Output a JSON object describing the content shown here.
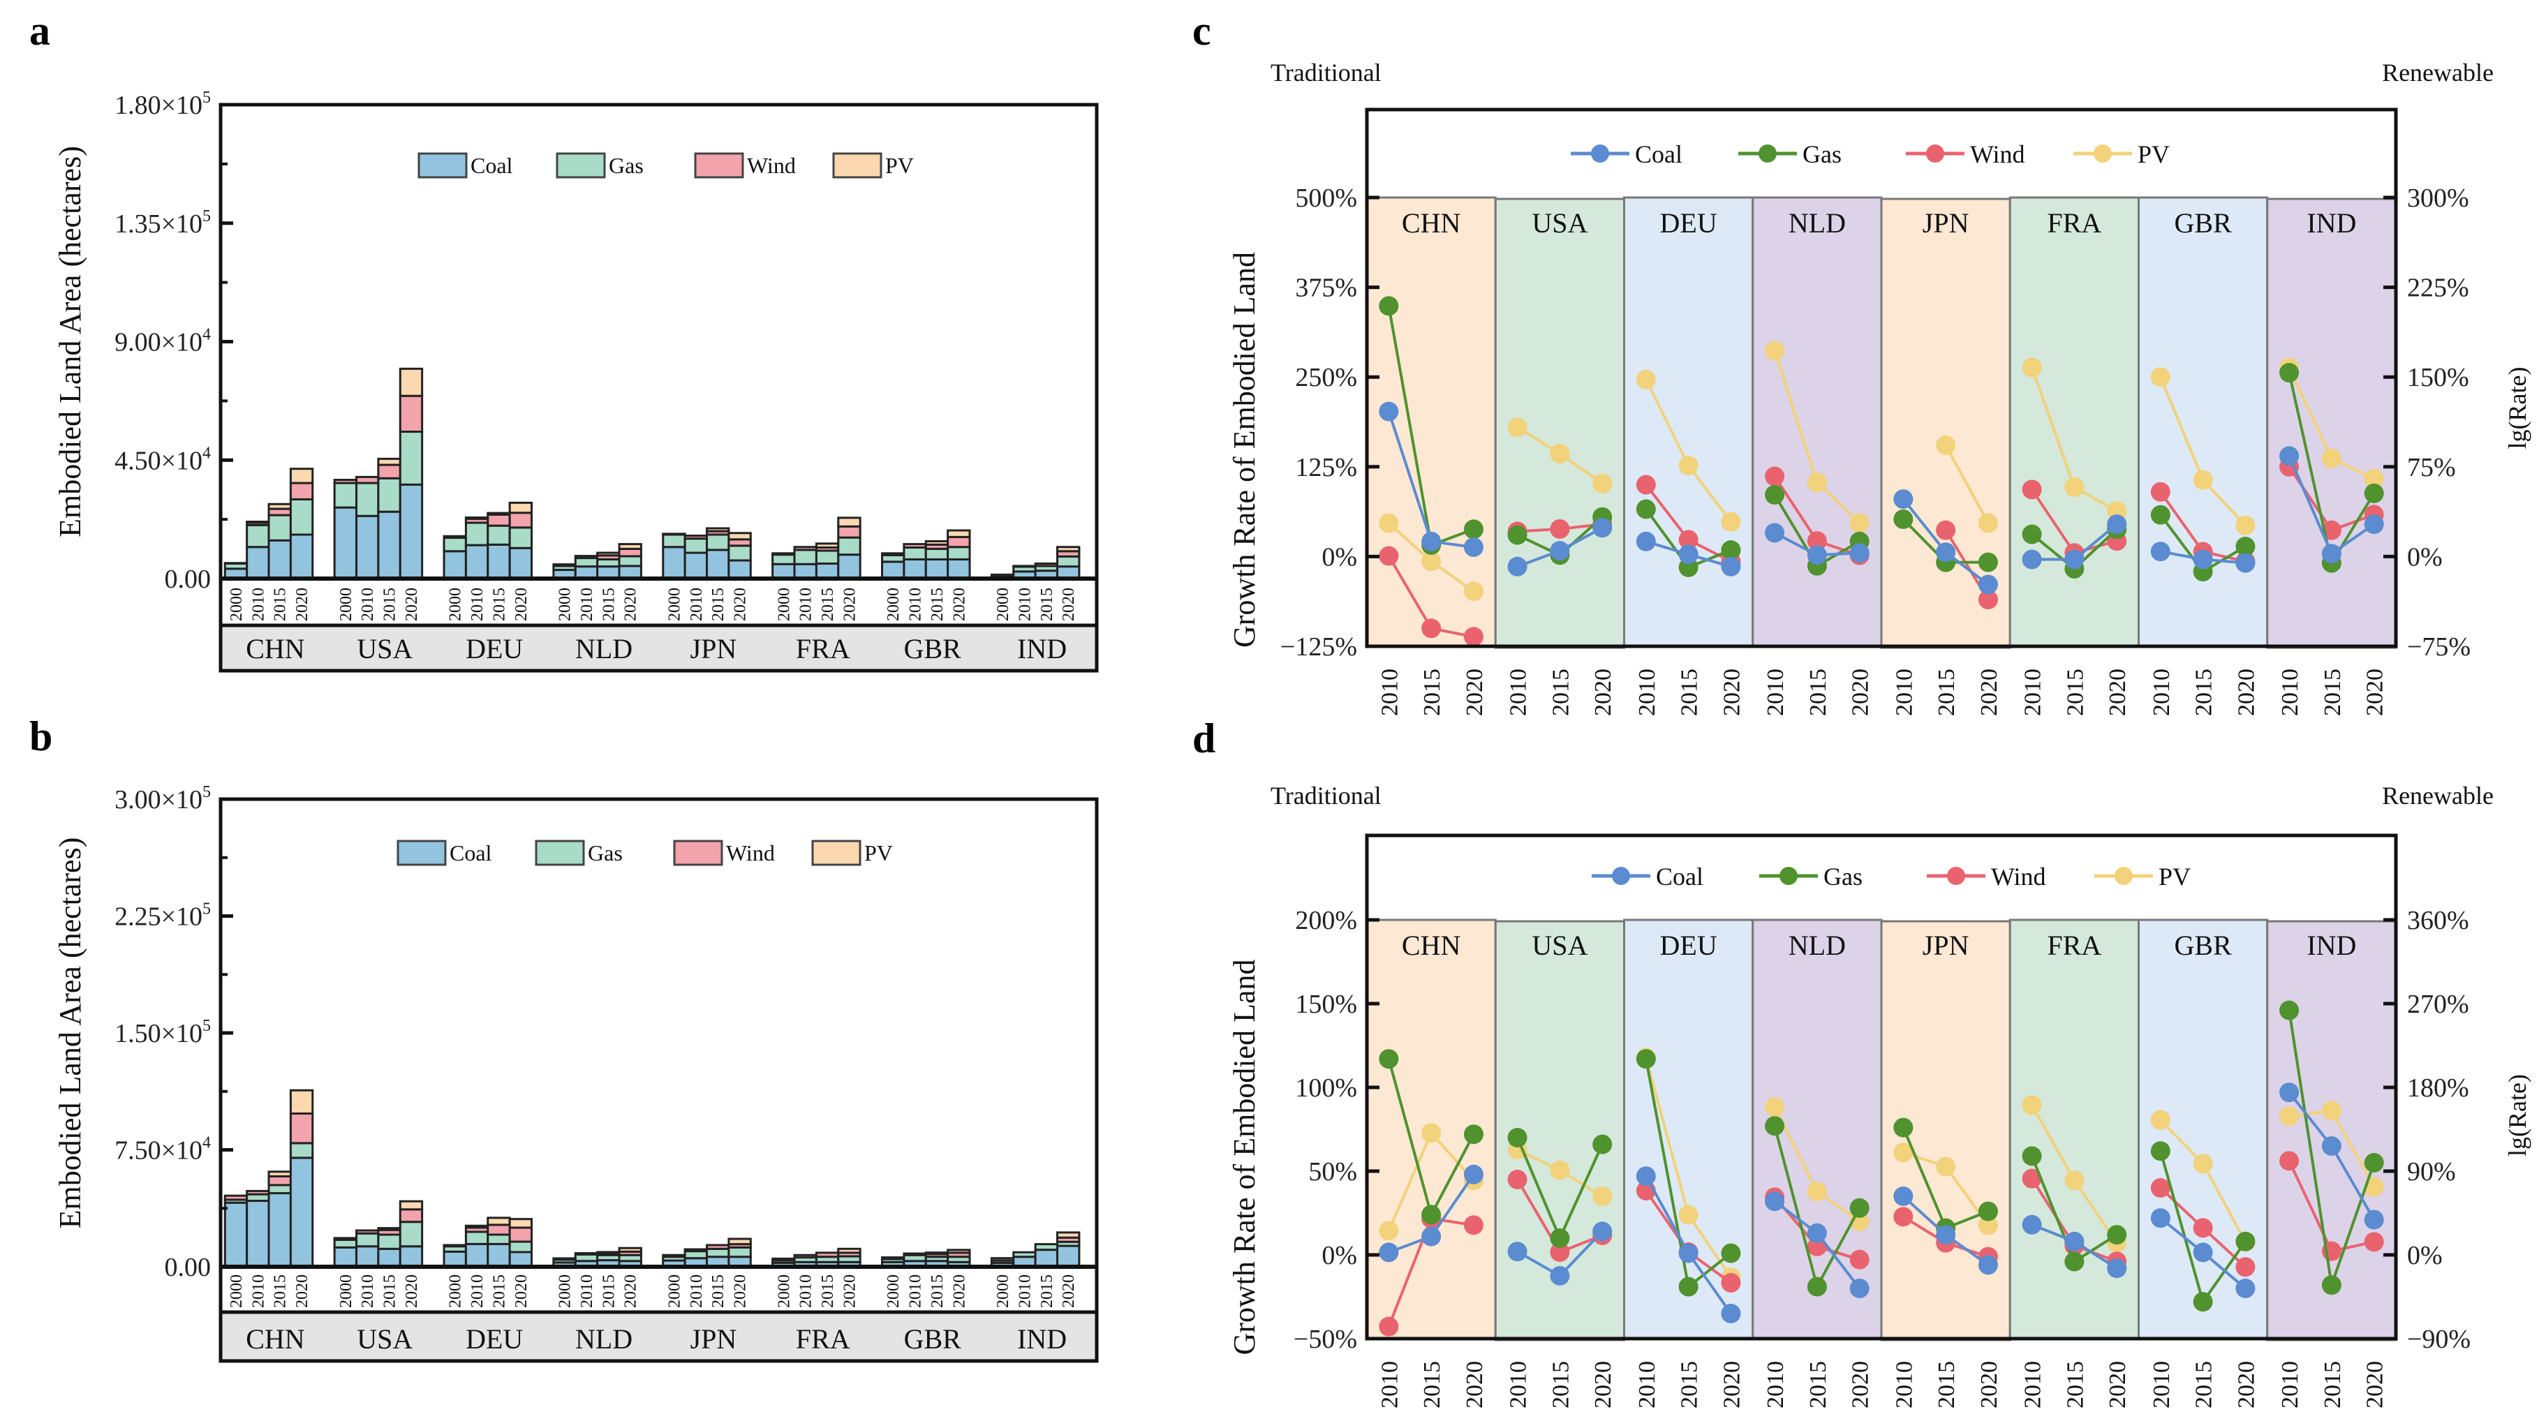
{
  "figure": {
    "colors": {
      "Coal_bar": "#92c4e0",
      "Gas_bar": "#a8dcc8",
      "Wind_bar": "#f2a3ac",
      "PV_bar": "#fbd8b0",
      "Coal_line": "#5b8bd0",
      "Gas_line": "#4f922e",
      "Wind_line": "#e9636f",
      "PV_line": "#f2d27a",
      "country_band": "#e4e4e4",
      "strips": [
        "#fde8d3",
        "#d5e8dc",
        "#dde9f6",
        "#dcd3e8"
      ]
    }
  },
  "chart_data": [
    {
      "panel": "a",
      "type": "bar",
      "stacked": true,
      "ylabel": "Embodied Land Area (hectares)",
      "ylim": [
        0,
        180000
      ],
      "yticks": [
        0,
        45000,
        90000,
        135000,
        180000
      ],
      "ytick_labels": [
        "0.00",
        "4.50×10^4",
        "9.00×10^4",
        "1.35×10^5",
        "1.80×10^5"
      ],
      "legend": [
        "Coal",
        "Gas",
        "Wind",
        "PV"
      ],
      "legend_position": "top-center",
      "countries": [
        "CHN",
        "USA",
        "DEU",
        "NLD",
        "JPN",
        "FRA",
        "GBR",
        "IND"
      ],
      "years": [
        "2000",
        "2010",
        "2015",
        "2020"
      ],
      "series": [
        {
          "name": "Coal",
          "values": [
            [
              3750,
              12000,
              14500,
              16700
            ],
            [
              27000,
              23800,
              25400,
              35700
            ],
            [
              10400,
              12700,
              12900,
              11600
            ],
            [
              3300,
              4600,
              4600,
              4800
            ],
            [
              12000,
              9800,
              10900,
              6900
            ],
            [
              5500,
              5500,
              5700,
              9100
            ],
            [
              6400,
              7300,
              7300,
              7300
            ],
            [
              1200,
              2700,
              3000,
              4600
            ]
          ]
        },
        {
          "name": "Gas",
          "values": [
            [
              1950,
              8300,
              9600,
              13400
            ],
            [
              9300,
              12500,
              12700,
              20100
            ],
            [
              5100,
              8500,
              7200,
              7800
            ],
            [
              1500,
              3200,
              2700,
              3700
            ],
            [
              4700,
              5400,
              5800,
              5600
            ],
            [
              3600,
              5400,
              4900,
              6500
            ],
            [
              2500,
              4500,
              4000,
              4700
            ],
            [
              300,
              1800,
              1800,
              3800
            ]
          ]
        },
        {
          "name": "Wind",
          "values": [
            [
              200,
              900,
              2400,
              6200
            ],
            [
              1200,
              2300,
              5100,
              13600
            ],
            [
              600,
              1500,
              4200,
              5600
            ],
            [
              600,
              800,
              1500,
              2800
            ],
            [
              300,
              1100,
              1300,
              2400
            ],
            [
              500,
              1100,
              1200,
              4200
            ],
            [
              700,
              1300,
              1600,
              3800
            ],
            [
              0,
              300,
              900,
              2000
            ]
          ]
        },
        {
          "name": "PV",
          "values": [
            [
              0,
              400,
              1800,
              5400
            ],
            [
              0,
              0,
              2300,
              10300
            ],
            [
              0,
              500,
              600,
              3800
            ],
            [
              0,
              0,
              1000,
              1800
            ],
            [
              0,
              0,
              1100,
              2400
            ],
            [
              0,
              0,
              1500,
              3300
            ],
            [
              0,
              0,
              1300,
              2500
            ],
            [
              0,
              0,
              0,
              1600
            ]
          ]
        }
      ]
    },
    {
      "panel": "b",
      "type": "bar",
      "stacked": true,
      "ylabel": "Embodied Land Area (hectares)",
      "ylim": [
        0,
        300000
      ],
      "yticks": [
        0,
        75000,
        150000,
        225000,
        300000
      ],
      "ytick_labels": [
        "0.00",
        "7.50×10^4",
        "1.50×10^5",
        "2.25×10^5",
        "3.00×10^5"
      ],
      "legend": [
        "Coal",
        "Gas",
        "Wind",
        "PV"
      ],
      "legend_position": "top-center",
      "countries": [
        "CHN",
        "USA",
        "DEU",
        "NLD",
        "JPN",
        "FRA",
        "GBR",
        "IND"
      ],
      "years": [
        "2000",
        "2010",
        "2015",
        "2020"
      ],
      "series": [
        {
          "name": "Coal",
          "values": [
            [
              41100,
              42300,
              47200,
              69900
            ],
            [
              12400,
              13100,
              11500,
              13100
            ],
            [
              9700,
              14600,
              14600,
              9400
            ],
            [
              2700,
              3700,
              4200,
              3700
            ],
            [
              4000,
              5500,
              6400,
              6400
            ],
            [
              2500,
              3000,
              3000,
              3000
            ],
            [
              3000,
              3700,
              3700,
              3000
            ],
            [
              2500,
              6400,
              10900,
              13400
            ]
          ]
        },
        {
          "name": "Gas",
          "values": [
            [
              1900,
              4200,
              5200,
              9400
            ],
            [
              4900,
              8300,
              9100,
              15700
            ],
            [
              3400,
              7800,
              6000,
              6700
            ],
            [
              1800,
              4200,
              3300,
              3800
            ],
            [
              2400,
              4500,
              5100,
              6000
            ],
            [
              1500,
              3000,
              3400,
              3700
            ],
            [
              1900,
              3800,
              2700,
              3400
            ],
            [
              1500,
              2900,
              3600,
              2600
            ]
          ]
        },
        {
          "name": "Wind",
          "values": [
            [
              2600,
              2100,
              5600,
              19000
            ],
            [
              1100,
              1900,
              3000,
              8000
            ],
            [
              800,
              2700,
              6300,
              9000
            ],
            [
              900,
              800,
              1200,
              2200
            ],
            [
              1100,
              1200,
              2400,
              2100
            ],
            [
              1200,
              1500,
              2600,
              2300
            ],
            [
              1100,
              1000,
              1800,
              2600
            ],
            [
              1500,
              0,
              0,
              2700
            ]
          ]
        },
        {
          "name": "PV",
          "values": [
            [
              0,
              0,
              3000,
              14900
            ],
            [
              0,
              0,
              1200,
              5200
            ],
            [
              0,
              1200,
              4500,
              5500
            ],
            [
              0,
              0,
              700,
              2300
            ],
            [
              0,
              0,
              0,
              3400
            ],
            [
              0,
              0,
              0,
              2500
            ],
            [
              0,
              0,
              900,
              1800
            ],
            [
              0,
              0,
              0,
              3300
            ]
          ]
        }
      ]
    },
    {
      "panel": "c",
      "type": "line",
      "title_left": "Traditional",
      "title_right": "Renewable",
      "ylabel": "Growth Rate of Embodied Land",
      "ylabel_right": "lg(Rate)",
      "ylim": [
        -125,
        500
      ],
      "yticks": [
        -125,
        0,
        125,
        250,
        375,
        500
      ],
      "ytick_labels": [
        "−125%",
        "0%",
        "125%",
        "250%",
        "375%",
        "500%"
      ],
      "ylim_right": [
        -75,
        300
      ],
      "yticks_right": [
        -75,
        0,
        75,
        150,
        225,
        300
      ],
      "ytick_labels_right": [
        "−75%",
        "0%",
        "75%",
        "150%",
        "225%",
        "300%"
      ],
      "legend": [
        "Coal",
        "Gas",
        "Wind",
        "PV"
      ],
      "legend_position": "top-center",
      "countries": [
        "CHN",
        "USA",
        "DEU",
        "NLD",
        "JPN",
        "FRA",
        "GBR",
        "IND"
      ],
      "x": [
        "2010",
        "2015",
        "2020"
      ],
      "series": [
        {
          "name": "Coal",
          "axis": "left",
          "values": [
            [
              202,
              21,
              13
            ],
            [
              -14,
              8,
              40
            ],
            [
              21,
              3,
              -14
            ],
            [
              33,
              2,
              5
            ],
            [
              80,
              6,
              -39
            ],
            [
              -4,
              -4,
              45
            ],
            [
              7,
              -4,
              -9
            ],
            [
              140,
              4,
              45
            ]
          ]
        },
        {
          "name": "Gas",
          "axis": "left",
          "values": [
            [
              349,
              16,
              38
            ],
            [
              30,
              2,
              55
            ],
            [
              66,
              -15,
              9
            ],
            [
              86,
              -13,
              21
            ],
            [
              52,
              -8,
              -8
            ],
            [
              31,
              -17,
              38
            ],
            [
              58,
              -21,
              14
            ],
            [
              256,
              -9,
              88
            ]
          ]
        },
        {
          "name": "Wind",
          "axis": "right",
          "values": [
            [
              0.5,
              -60,
              -67
            ],
            [
              21,
              23,
              27
            ],
            [
              60,
              14,
              -4
            ],
            [
              67,
              13,
              1
            ],
            [
              null,
              22,
              -36
            ],
            [
              56,
              3,
              13
            ],
            [
              54,
              4,
              -4
            ],
            [
              75,
              22,
              35
            ]
          ]
        },
        {
          "name": "PV",
          "axis": "right",
          "values": [
            [
              28,
              -4,
              -29
            ],
            [
              108,
              86,
              61
            ],
            [
              148,
              76,
              29
            ],
            [
              172,
              62,
              28
            ],
            [
              null,
              93,
              28
            ],
            [
              158,
              58,
              38
            ],
            [
              150,
              64,
              26
            ],
            [
              158,
              82,
              65
            ]
          ]
        }
      ]
    },
    {
      "panel": "d",
      "type": "line",
      "title_left": "Traditional",
      "title_right": "Renewable",
      "ylabel": "Growth Rate of Embodied Land",
      "ylabel_right": "lg(Rate)",
      "ylim": [
        -50,
        200
      ],
      "yticks": [
        -50,
        0,
        50,
        100,
        150,
        200
      ],
      "ytick_labels": [
        "−50%",
        "0%",
        "50%",
        "100%",
        "150%",
        "200%"
      ],
      "ylim_right": [
        -90,
        360
      ],
      "yticks_right": [
        -90,
        0,
        90,
        180,
        270,
        360
      ],
      "ytick_labels_right": [
        "−90%",
        "0%",
        "90%",
        "180%",
        "270%",
        "360%"
      ],
      "legend": [
        "Coal",
        "Gas",
        "Wind",
        "PV"
      ],
      "legend_position": "top-center",
      "countries": [
        "CHN",
        "USA",
        "DEU",
        "NLD",
        "JPN",
        "FRA",
        "GBR",
        "IND"
      ],
      "x": [
        "2010",
        "2015",
        "2020"
      ],
      "series": [
        {
          "name": "Coal",
          "axis": "left",
          "values": [
            [
              1.5,
              11,
              48
            ],
            [
              2,
              -12.5,
              14
            ],
            [
              47,
              1,
              -35
            ],
            [
              32,
              13,
              -20
            ],
            [
              35,
              12,
              -6
            ],
            [
              18,
              8,
              -8
            ],
            [
              22,
              1.5,
              -20
            ],
            [
              97,
              65,
              21
            ]
          ]
        },
        {
          "name": "Gas",
          "axis": "left",
          "values": [
            [
              117,
              24,
              72
            ],
            [
              70,
              10,
              66
            ],
            [
              117,
              -19,
              1
            ],
            [
              77,
              -19,
              28
            ],
            [
              76,
              16,
              26
            ],
            [
              59,
              -4,
              12
            ],
            [
              62,
              -28,
              8
            ],
            [
              146,
              -18,
              55
            ]
          ]
        },
        {
          "name": "Wind",
          "axis": "right",
          "values": [
            [
              -77,
              39,
              32
            ],
            [
              81,
              3,
              21
            ],
            [
              69,
              3,
              -30
            ],
            [
              62,
              9,
              -5
            ],
            [
              41,
              13,
              -2
            ],
            [
              82,
              10,
              -7
            ],
            [
              72,
              29,
              -13
            ],
            [
              101,
              4,
              14
            ]
          ]
        },
        {
          "name": "PV",
          "axis": "right",
          "values": [
            [
              26,
              131,
              80
            ],
            [
              113,
              91,
              63
            ],
            [
              212,
              43,
              -24
            ],
            [
              159,
              68,
              36
            ],
            [
              110,
              95,
              32
            ],
            [
              161,
              80,
              13
            ],
            [
              145,
              98,
              14
            ],
            [
              149,
              155,
              73
            ]
          ]
        }
      ]
    }
  ],
  "labels": {
    "panel_a": "a",
    "panel_b": "b",
    "panel_c": "c",
    "panel_d": "d"
  }
}
